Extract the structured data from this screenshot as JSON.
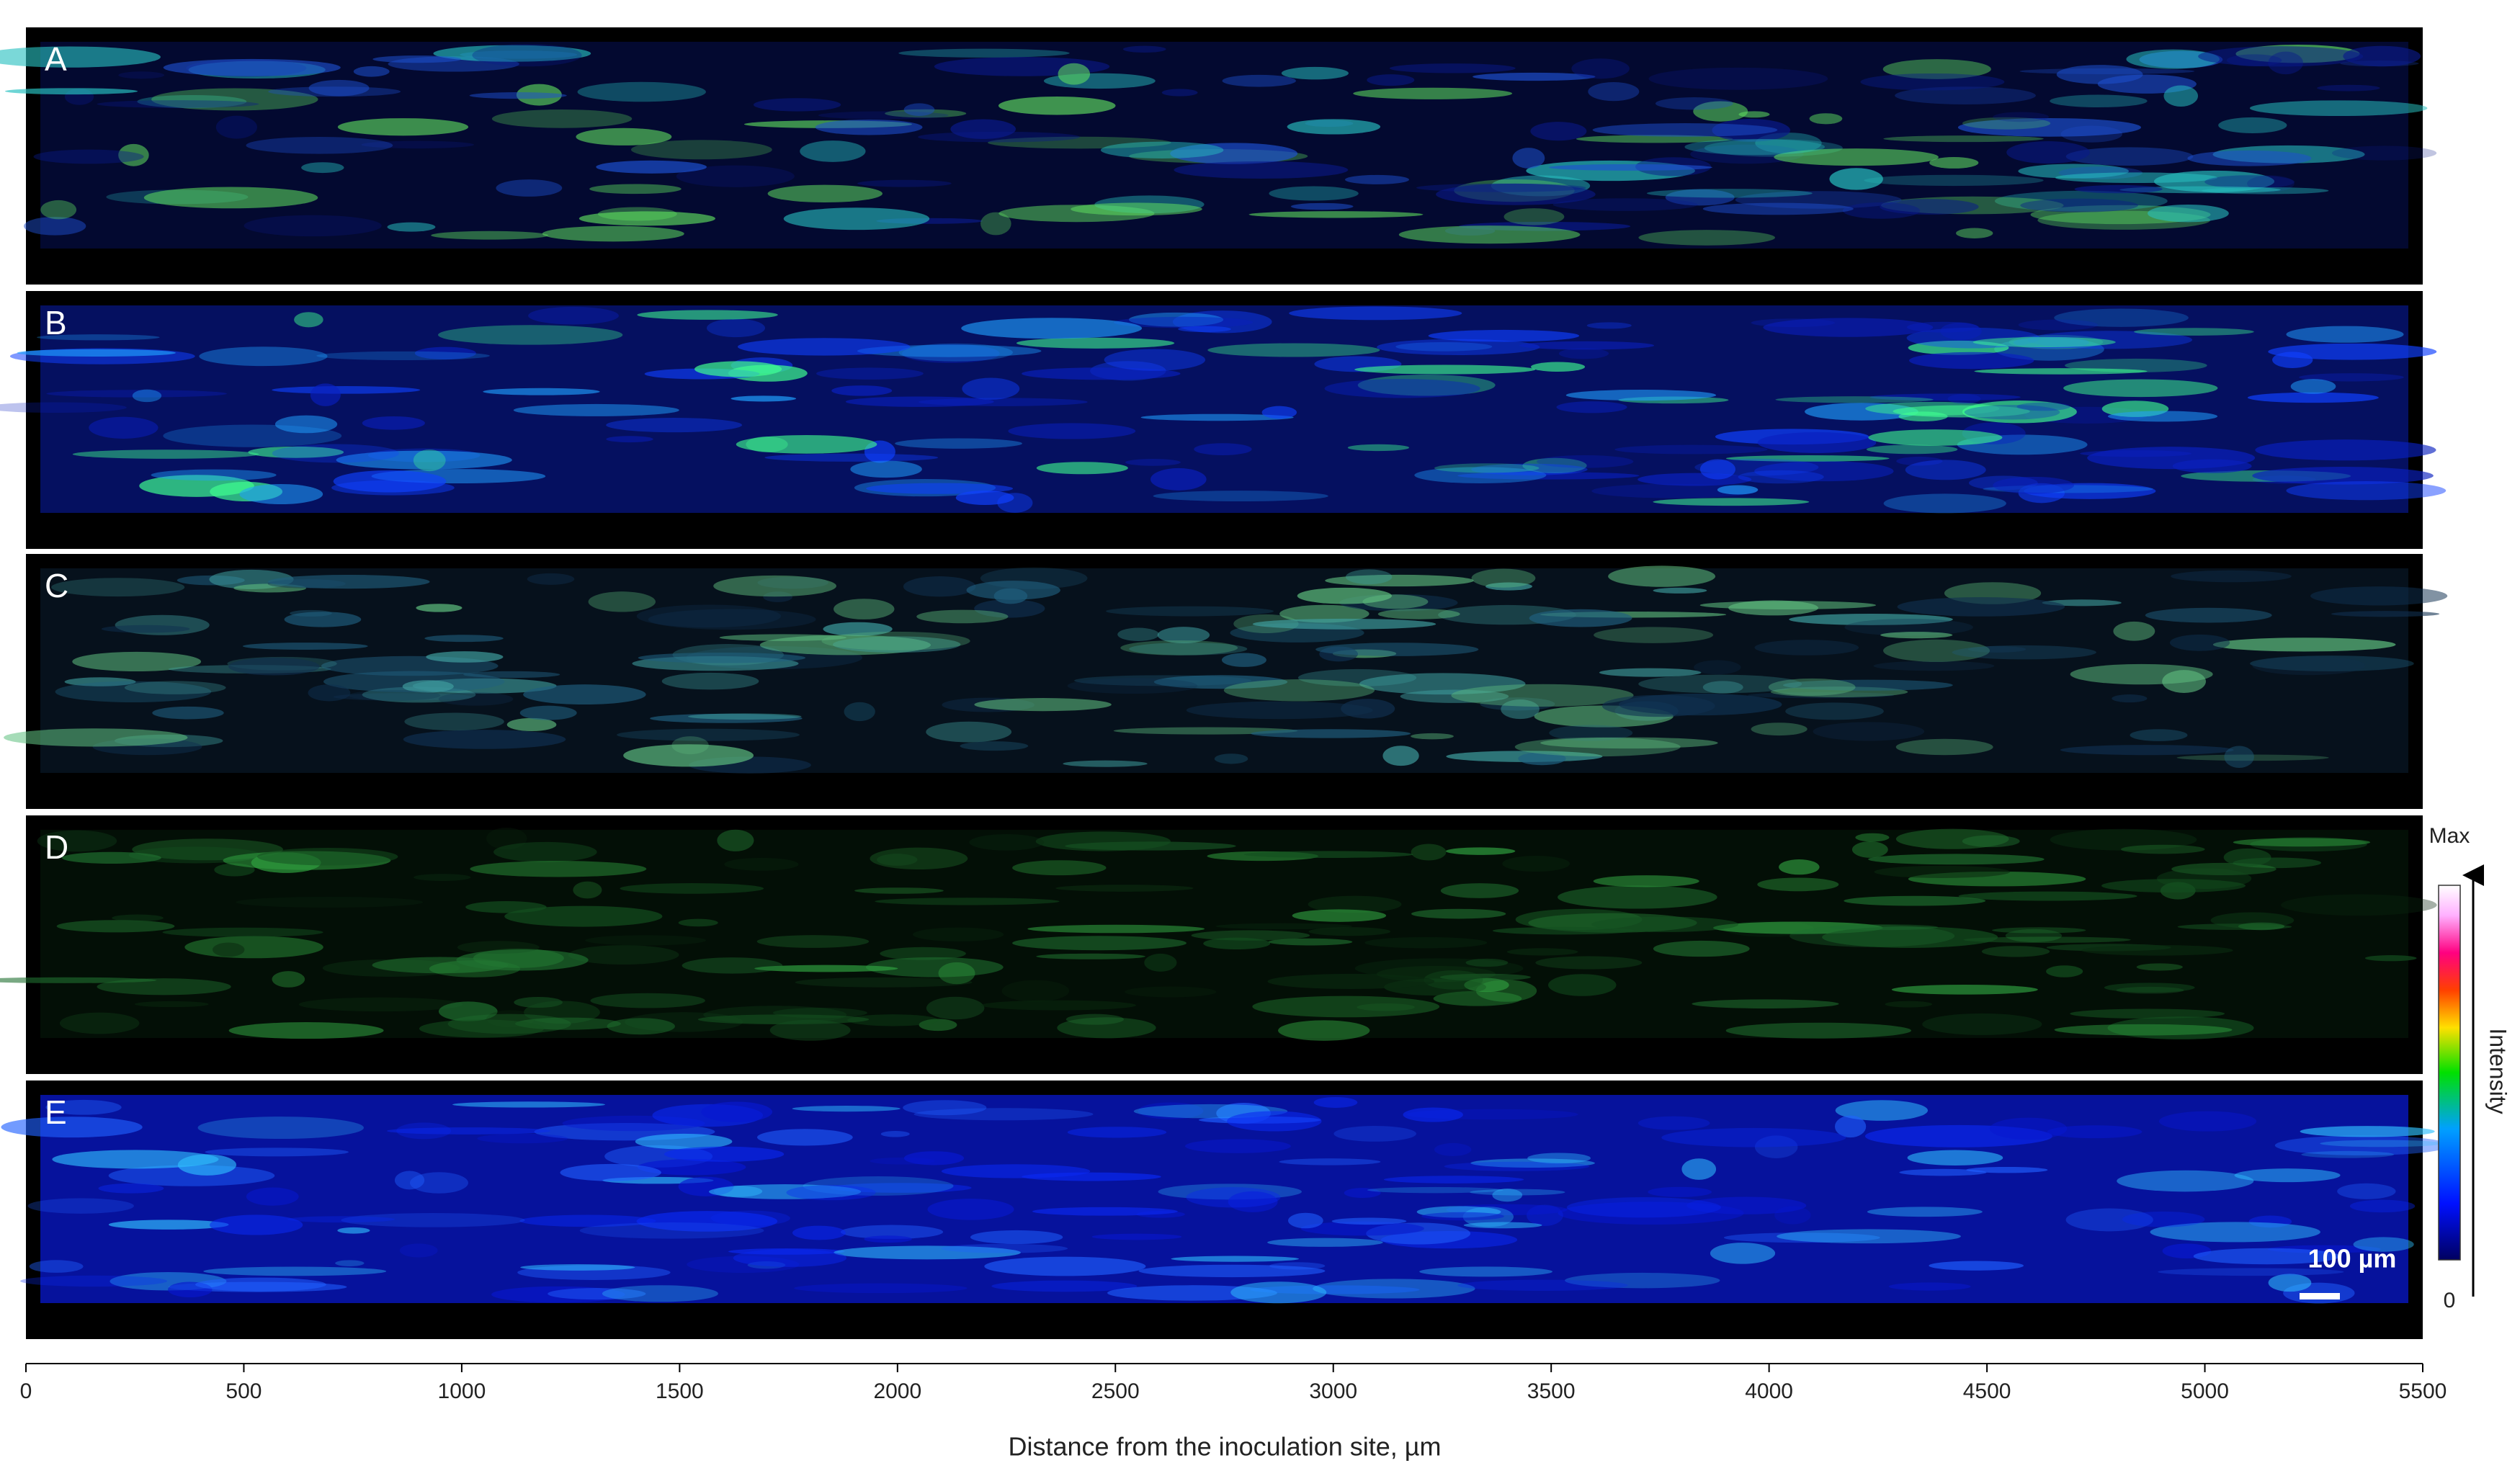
{
  "figure": {
    "panels": [
      "A",
      "B",
      "C",
      "D",
      "E"
    ],
    "x_axis": {
      "label": "Distance from the inoculation site, µm",
      "xlim": [
        0,
        5500
      ],
      "xticks": [
        0,
        500,
        1000,
        1500,
        2000,
        2500,
        3000,
        3500,
        4000,
        4500,
        5000,
        5500
      ]
    },
    "colorbar": {
      "max_label": "Max",
      "min_label": "0",
      "title": "Intensity"
    },
    "scale_bar": "100 µm"
  }
}
